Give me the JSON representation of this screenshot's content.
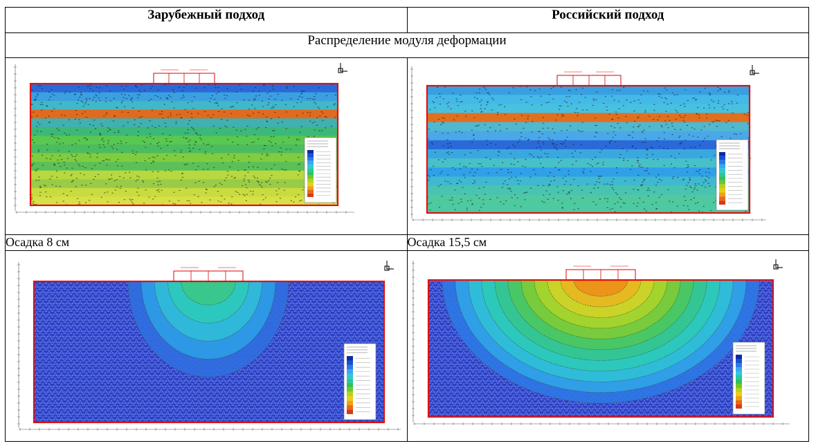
{
  "table": {
    "headers": [
      "Зарубежный подход",
      "Российский подход"
    ],
    "span_title": "Распределение модуля деформации",
    "captions": [
      "Осадка 8 см",
      "Осадка 15,5 см"
    ]
  },
  "figures": [
    {
      "id": "foreign-modulus",
      "kind": "layered",
      "palette": "warm"
    },
    {
      "id": "russian-modulus",
      "kind": "layered",
      "palette": "cool"
    },
    {
      "id": "foreign-settlement",
      "kind": "bulb",
      "depth": 0.55
    },
    {
      "id": "russian-settlement",
      "kind": "bulb",
      "depth": 1.0
    }
  ],
  "colors": {
    "mesh_blue": "#2a3fc4",
    "boundary_red": "#e01010",
    "legend_scale": [
      "#0a2aa8",
      "#1a4fd0",
      "#2a7ae8",
      "#38a8f0",
      "#30c8d8",
      "#28c8a0",
      "#30c060",
      "#70c828",
      "#b8d020",
      "#e8d010",
      "#f0a018",
      "#e86a18",
      "#d83a18"
    ]
  }
}
